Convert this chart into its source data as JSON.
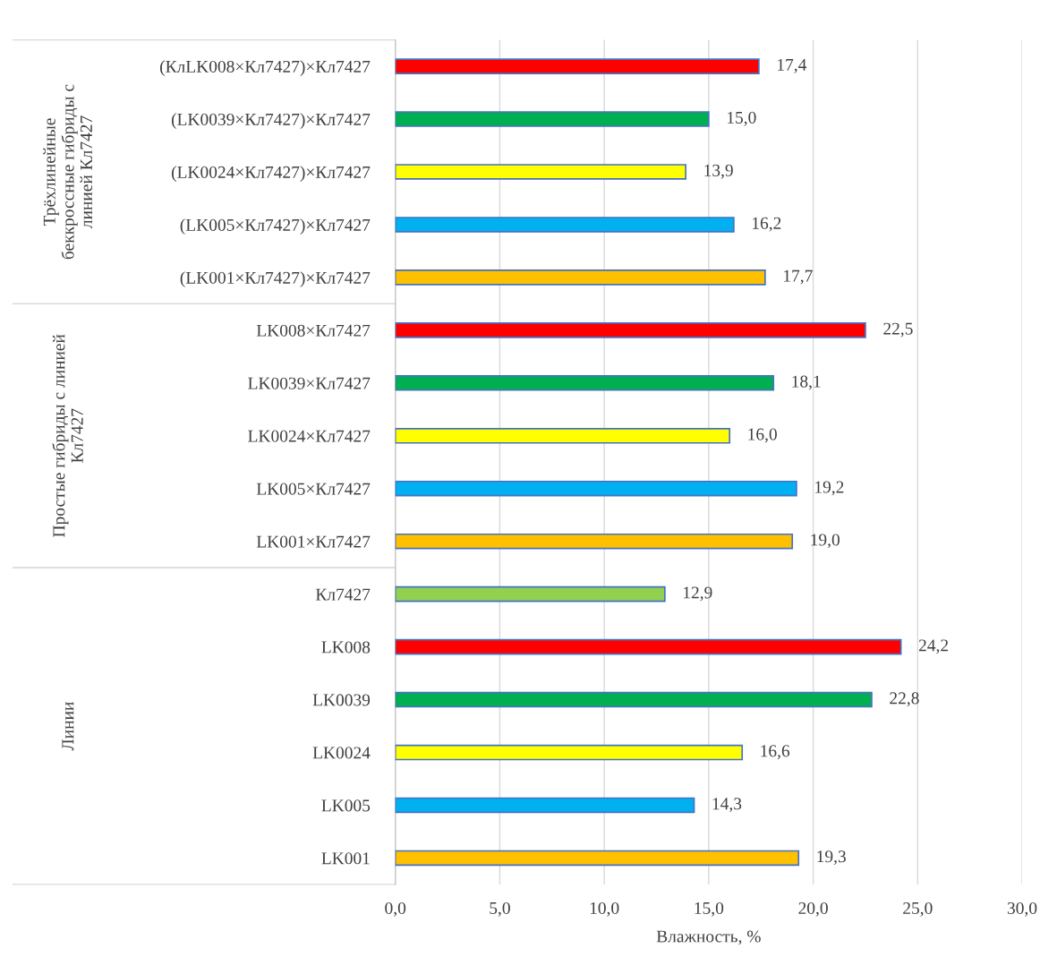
{
  "chart_data": {
    "type": "bar",
    "orientation": "horizontal",
    "xlabel": "Влажность, %",
    "categories": [
      "(КлLK008×Кл7427)×Кл7427",
      "(LK0039×Кл7427)×Кл7427",
      "(LK0024×Кл7427)×Кл7427",
      "(LK005×Кл7427)×Кл7427",
      "(LK001×Кл7427)×Кл7427",
      "LK008×Кл7427",
      "LK0039×Кл7427",
      "LK0024×Кл7427",
      "LK005×Кл7427",
      "LK001×Кл7427",
      "Кл7427",
      "LK008",
      "LK0039",
      "LK0024",
      "LK005",
      "LK001"
    ],
    "values": [
      17.4,
      15.0,
      13.9,
      16.2,
      17.7,
      22.5,
      18.1,
      16.0,
      19.2,
      19.0,
      12.9,
      24.2,
      22.8,
      16.6,
      14.3,
      19.3
    ],
    "value_labels": [
      "17,4",
      "15,0",
      "13,9",
      "16,2",
      "17,7",
      "22,5",
      "18,1",
      "16,0",
      "19,2",
      "19,0",
      "12,9",
      "24,2",
      "22,8",
      "16,6",
      "14,3",
      "19,3"
    ],
    "colors": [
      "#ff0000",
      "#00b050",
      "#ffff00",
      "#00b0f0",
      "#ffc000",
      "#ff0000",
      "#00b050",
      "#ffff00",
      "#00b0f0",
      "#ffc000",
      "#92d050",
      "#ff0000",
      "#00b050",
      "#ffff00",
      "#00b0f0",
      "#ffc000"
    ],
    "xlim": [
      0,
      30
    ],
    "xticks": [
      {
        "value": 0,
        "label": "0,0"
      },
      {
        "value": 5,
        "label": "5,0"
      },
      {
        "value": 10,
        "label": "10,0"
      },
      {
        "value": 15,
        "label": "15,0"
      },
      {
        "value": 20,
        "label": "20,0"
      },
      {
        "value": 25,
        "label": "25,0"
      },
      {
        "value": 30,
        "label": "30,0"
      }
    ],
    "grid": "x",
    "annotations": [
      "Трёхлинейные\nбеккроссные гибриды с\nлинией Кл7427",
      "Простые гибриды с линией\nКл7427",
      "Линии"
    ]
  }
}
